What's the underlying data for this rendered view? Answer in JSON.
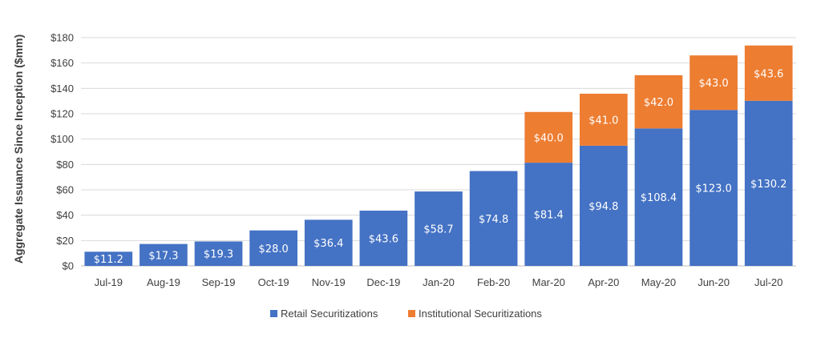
{
  "chart_data": {
    "type": "bar",
    "stacked": true,
    "title": "",
    "xlabel": "",
    "ylabel": "Aggregate Issuance Since Inception ($mm)",
    "ylim": [
      0,
      180
    ],
    "y_ticks": [
      "$0",
      "$20",
      "$40",
      "$60",
      "$80",
      "$100",
      "$120",
      "$140",
      "$160",
      "$180"
    ],
    "y_tick_values": [
      0,
      20,
      40,
      60,
      80,
      100,
      120,
      140,
      160,
      180
    ],
    "grid": true,
    "legend_position": "bottom",
    "categories": [
      "Jul-19",
      "Aug-19",
      "Sep-19",
      "Oct-19",
      "Nov-19",
      "Dec-19",
      "Jan-20",
      "Feb-20",
      "Mar-20",
      "Apr-20",
      "May-20",
      "Jun-20",
      "Jul-20"
    ],
    "series": [
      {
        "name": "Retail Securitizations",
        "color": "#4472C4",
        "values": [
          11.2,
          17.3,
          19.3,
          28.0,
          36.4,
          43.6,
          58.7,
          74.8,
          81.4,
          94.8,
          108.4,
          123.0,
          130.2
        ],
        "labels": [
          "$11.2",
          "$17.3",
          "$19.3",
          "$28.0",
          "$36.4",
          "$43.6",
          "$58.7",
          "$74.8",
          "$81.4",
          "$94.8",
          "$108.4",
          "$123.0",
          "$130.2"
        ]
      },
      {
        "name": "Institutional Securitizations",
        "color": "#ED7D31",
        "values": [
          null,
          null,
          null,
          null,
          null,
          null,
          null,
          null,
          40.0,
          41.0,
          42.0,
          43.0,
          43.6
        ],
        "labels": [
          "",
          "",
          "",
          "",
          "",
          "",
          "",
          "",
          "$40.0",
          "$41.0",
          "$42.0",
          "$43.0",
          "$43.6"
        ]
      }
    ],
    "colors": {
      "grid": "#D9D9D9",
      "axis": "#BFBFBF",
      "text": "#404040",
      "bar_label": "#FFFFFF"
    }
  }
}
